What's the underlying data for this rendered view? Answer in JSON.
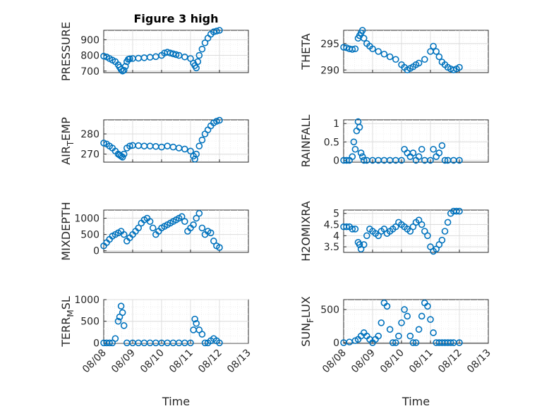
{
  "colors": {
    "marker": "#0072BD",
    "axis": "#262626",
    "grid": "#dcdcdc"
  },
  "chart_data": [
    {
      "type": "scatter",
      "title": "Figure 3 high",
      "ylabel": "PRESSURE",
      "xlabel": "",
      "ylim": [
        690,
        960
      ],
      "yticks": [
        700,
        800,
        900
      ],
      "xlim": [
        0,
        5
      ],
      "xticks": [],
      "grid": true,
      "x": [
        0.0,
        0.1,
        0.2,
        0.3,
        0.4,
        0.5,
        0.55,
        0.6,
        0.65,
        0.7,
        0.75,
        0.8,
        0.85,
        0.9,
        1.0,
        1.2,
        1.4,
        1.6,
        1.8,
        2.0,
        2.1,
        2.2,
        2.3,
        2.4,
        2.5,
        2.6,
        2.8,
        3.0,
        3.1,
        3.15,
        3.2,
        3.25,
        3.3,
        3.4,
        3.5,
        3.6,
        3.7,
        3.8,
        3.9,
        4.0
      ],
      "y": [
        795,
        790,
        780,
        770,
        760,
        740,
        725,
        710,
        700,
        705,
        730,
        760,
        775,
        778,
        780,
        782,
        785,
        788,
        792,
        800,
        815,
        820,
        815,
        810,
        805,
        800,
        790,
        780,
        750,
        735,
        720,
        760,
        800,
        840,
        880,
        910,
        935,
        950,
        955,
        960
      ]
    },
    {
      "type": "scatter",
      "title": "",
      "ylabel": "THETA",
      "xlabel": "",
      "ylim": [
        289.5,
        297.5
      ],
      "yticks": [
        290,
        295
      ],
      "xlim": [
        0,
        5
      ],
      "xticks": [],
      "grid": true,
      "x": [
        0.0,
        0.1,
        0.2,
        0.3,
        0.4,
        0.5,
        0.55,
        0.6,
        0.65,
        0.7,
        0.8,
        0.9,
        1.0,
        1.2,
        1.4,
        1.6,
        1.8,
        2.0,
        2.1,
        2.2,
        2.3,
        2.4,
        2.5,
        2.6,
        2.8,
        3.0,
        3.1,
        3.2,
        3.3,
        3.4,
        3.5,
        3.6,
        3.7,
        3.8,
        3.9,
        4.0
      ],
      "y": [
        294.3,
        294.2,
        294.0,
        293.9,
        294.0,
        296.0,
        296.5,
        297.0,
        297.5,
        296.0,
        295.0,
        294.5,
        294.0,
        293.5,
        293.0,
        292.5,
        292.0,
        291.0,
        290.5,
        290.0,
        290.3,
        290.6,
        291.0,
        291.3,
        292.0,
        293.5,
        294.5,
        293.5,
        292.5,
        291.5,
        291.0,
        290.5,
        290.2,
        290.0,
        290.2,
        290.5
      ]
    },
    {
      "type": "scatter",
      "title": "",
      "ylabel": "AIR_TEMP",
      "xlabel": "",
      "ylim": [
        266,
        287
      ],
      "yticks": [
        270,
        280
      ],
      "xlim": [
        0,
        5
      ],
      "xticks": [],
      "grid": true,
      "x": [
        0.0,
        0.1,
        0.2,
        0.3,
        0.4,
        0.5,
        0.55,
        0.6,
        0.65,
        0.7,
        0.8,
        0.9,
        1.0,
        1.2,
        1.4,
        1.6,
        1.8,
        2.0,
        2.2,
        2.4,
        2.6,
        2.8,
        3.0,
        3.1,
        3.15,
        3.2,
        3.3,
        3.4,
        3.5,
        3.6,
        3.7,
        3.8,
        3.9,
        4.0
      ],
      "y": [
        275.5,
        275.0,
        274.0,
        273.0,
        271.5,
        270.0,
        269.5,
        269.0,
        268.5,
        270.0,
        273.0,
        274.0,
        274.3,
        274.2,
        274.0,
        274.0,
        273.8,
        273.5,
        274.0,
        273.5,
        273.0,
        272.5,
        271.5,
        269.0,
        267.5,
        270.0,
        274.0,
        277.0,
        280.0,
        282.0,
        284.0,
        285.5,
        286.3,
        286.8
      ]
    },
    {
      "type": "scatter",
      "title": "",
      "ylabel": "RAINFALL",
      "xlabel": "",
      "ylim": [
        -0.05,
        1.1
      ],
      "yticks": [
        0,
        0.5,
        1
      ],
      "xlim": [
        0,
        5
      ],
      "xticks": [],
      "grid": true,
      "x": [
        0.0,
        0.1,
        0.2,
        0.3,
        0.35,
        0.4,
        0.45,
        0.5,
        0.55,
        0.6,
        0.65,
        0.7,
        0.8,
        1.0,
        1.2,
        1.4,
        1.6,
        1.8,
        2.0,
        2.1,
        2.2,
        2.3,
        2.4,
        2.5,
        2.6,
        2.7,
        2.8,
        3.0,
        3.1,
        3.2,
        3.3,
        3.4,
        3.5,
        3.6,
        3.8,
        4.0
      ],
      "y": [
        0,
        0,
        0,
        0.1,
        0.5,
        0.3,
        0.8,
        1.05,
        0.9,
        0.2,
        0.1,
        0,
        0,
        0,
        0,
        0,
        0,
        0,
        0,
        0.3,
        0.2,
        0.1,
        0.2,
        0,
        0.1,
        0.3,
        0,
        0,
        0.3,
        0.1,
        0.2,
        0.4,
        0,
        0,
        0,
        0
      ]
    },
    {
      "type": "scatter",
      "title": "",
      "ylabel": "MIXDEPTH",
      "xlabel": "",
      "ylim": [
        -50,
        1250
      ],
      "yticks": [
        0,
        500,
        1000
      ],
      "xlim": [
        0,
        5
      ],
      "xticks": [],
      "grid": true,
      "x": [
        0.0,
        0.1,
        0.2,
        0.3,
        0.4,
        0.5,
        0.6,
        0.7,
        0.8,
        0.9,
        1.0,
        1.1,
        1.2,
        1.3,
        1.4,
        1.5,
        1.6,
        1.7,
        1.8,
        1.9,
        2.0,
        2.1,
        2.2,
        2.3,
        2.4,
        2.5,
        2.6,
        2.7,
        2.8,
        2.9,
        3.0,
        3.1,
        3.2,
        3.3,
        3.4,
        3.5,
        3.6,
        3.7,
        3.8,
        3.9,
        4.0
      ],
      "y": [
        150,
        250,
        350,
        450,
        500,
        550,
        600,
        500,
        300,
        400,
        500,
        600,
        700,
        850,
        950,
        1000,
        900,
        700,
        500,
        600,
        700,
        750,
        800,
        850,
        900,
        950,
        1000,
        1050,
        900,
        600,
        700,
        800,
        1000,
        1150,
        700,
        500,
        600,
        550,
        300,
        150,
        100
      ]
    },
    {
      "type": "scatter",
      "title": "",
      "ylabel": "H2OMIXRA",
      "xlabel": "",
      "ylim": [
        3.25,
        5.15
      ],
      "yticks": [
        3.5,
        4,
        4.5,
        5
      ],
      "xlim": [
        0,
        5
      ],
      "xticks": [],
      "grid": true,
      "x": [
        0.0,
        0.1,
        0.2,
        0.3,
        0.4,
        0.5,
        0.55,
        0.6,
        0.7,
        0.8,
        0.9,
        1.0,
        1.1,
        1.2,
        1.3,
        1.4,
        1.5,
        1.6,
        1.7,
        1.8,
        1.9,
        2.0,
        2.1,
        2.2,
        2.3,
        2.4,
        2.5,
        2.6,
        2.7,
        2.8,
        2.9,
        3.0,
        3.1,
        3.2,
        3.3,
        3.4,
        3.5,
        3.6,
        3.7,
        3.8,
        3.9,
        4.0
      ],
      "y": [
        4.4,
        4.4,
        4.4,
        4.3,
        4.3,
        3.7,
        3.6,
        3.4,
        3.6,
        4.0,
        4.3,
        4.2,
        4.1,
        4.0,
        4.2,
        4.3,
        4.1,
        4.2,
        4.3,
        4.4,
        4.6,
        4.5,
        4.4,
        4.3,
        4.2,
        4.4,
        4.6,
        4.7,
        4.5,
        4.2,
        4.0,
        3.5,
        3.3,
        3.4,
        3.6,
        3.8,
        4.2,
        4.6,
        5.0,
        5.1,
        5.1,
        5.1
      ]
    },
    {
      "type": "scatter",
      "title": "",
      "ylabel": "TERR_MSL",
      "xlabel": "Time",
      "ylim": [
        -10,
        1000
      ],
      "yticks": [
        0,
        500,
        1000
      ],
      "xlim": [
        0,
        5
      ],
      "xticks": [
        "08/08",
        "08/09",
        "08/10",
        "08/11",
        "08/12",
        "08/13"
      ],
      "grid": true,
      "x": [
        0.0,
        0.1,
        0.2,
        0.3,
        0.4,
        0.5,
        0.55,
        0.6,
        0.65,
        0.7,
        0.8,
        1.0,
        1.2,
        1.4,
        1.6,
        1.8,
        2.0,
        2.2,
        2.4,
        2.6,
        2.8,
        3.0,
        3.1,
        3.15,
        3.2,
        3.3,
        3.4,
        3.5,
        3.6,
        3.7,
        3.8,
        3.9,
        4.0
      ],
      "y": [
        0,
        0,
        0,
        0,
        100,
        500,
        600,
        850,
        700,
        400,
        0,
        0,
        0,
        0,
        0,
        0,
        0,
        0,
        0,
        0,
        0,
        0,
        300,
        550,
        450,
        300,
        200,
        0,
        0,
        50,
        100,
        50,
        0
      ]
    },
    {
      "type": "scatter",
      "title": "",
      "ylabel": "SUN_FLUX",
      "xlabel": "Time",
      "ylim": [
        -10,
        650
      ],
      "yticks": [
        0,
        500
      ],
      "xlim": [
        0,
        5
      ],
      "xticks": [
        "08/08",
        "08/09",
        "08/10",
        "08/11",
        "08/12",
        "08/13"
      ],
      "grid": true,
      "x": [
        0.0,
        0.2,
        0.4,
        0.5,
        0.6,
        0.7,
        0.8,
        0.9,
        1.0,
        1.1,
        1.2,
        1.3,
        1.4,
        1.5,
        1.6,
        1.7,
        1.8,
        1.9,
        2.0,
        2.1,
        2.2,
        2.3,
        2.4,
        2.5,
        2.6,
        2.7,
        2.8,
        2.9,
        3.0,
        3.1,
        3.2,
        3.3,
        3.4,
        3.5,
        3.6,
        3.7,
        3.8,
        4.0
      ],
      "y": [
        0,
        10,
        30,
        50,
        100,
        150,
        100,
        50,
        0,
        50,
        100,
        300,
        600,
        550,
        200,
        0,
        0,
        100,
        300,
        500,
        400,
        100,
        0,
        0,
        200,
        400,
        600,
        550,
        350,
        150,
        0,
        0,
        0,
        0,
        0,
        0,
        0,
        0
      ]
    }
  ]
}
